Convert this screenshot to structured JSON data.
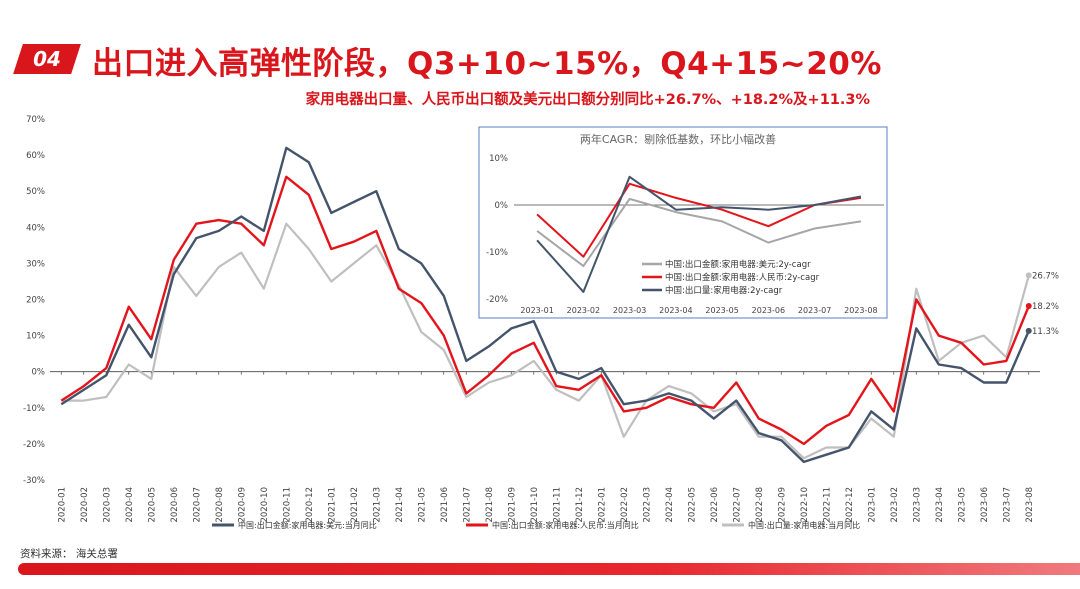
{
  "header": {
    "badge": "04",
    "title": "出口进入高弹性阶段，Q3+10~15%，Q4+15~20%",
    "subtitle": "家用电器出口量、人民币出口额及美元出口额分别同比+26.7%、+18.2%及+11.3%"
  },
  "source": "资料来源：  海关总署",
  "colors": {
    "brand_red": "#d9161c",
    "navy": "#44546a",
    "red": "#e3141b",
    "gray": "#bfbfbf"
  },
  "chart_data": [
    {
      "type": "line",
      "categories": [
        "2020-01",
        "2020-02",
        "2020-03",
        "2020-04",
        "2020-05",
        "2020-06",
        "2020-07",
        "2020-08",
        "2020-09",
        "2020-10",
        "2020-11",
        "2020-12",
        "2021-01",
        "2021-02",
        "2021-03",
        "2021-04",
        "2021-05",
        "2021-06",
        "2021-07",
        "2021-08",
        "2021-09",
        "2021-10",
        "2021-11",
        "2021-12",
        "2022-01",
        "2022-02",
        "2022-03",
        "2022-04",
        "2022-05",
        "2022-06",
        "2022-07",
        "2022-08",
        "2022-09",
        "2022-10",
        "2022-11",
        "2022-12",
        "2023-01",
        "2023-02",
        "2023-03",
        "2023-04",
        "2023-05",
        "2023-06",
        "2023-07",
        "2023-08"
      ],
      "ylim": [
        -30,
        70
      ],
      "yticks": [
        "-30%",
        "-20%",
        "-10%",
        "0%",
        "10%",
        "20%",
        "30%",
        "40%",
        "50%",
        "60%",
        "70%"
      ],
      "legend_position": "bottom",
      "series": [
        {
          "name": "中国:出口金额:家用电器:美元:当月同比",
          "color": "#44546a",
          "values": [
            -9,
            -5,
            -1,
            13,
            4,
            27,
            37,
            39,
            43,
            39,
            62,
            58,
            44,
            47,
            50,
            34,
            30,
            21,
            3,
            7,
            12,
            14,
            0,
            -2,
            1,
            -9,
            -8,
            -6,
            -8,
            -13,
            -8,
            -17,
            -19,
            -25,
            -23,
            -21,
            -11,
            -16,
            12,
            2,
            1,
            -3,
            -3,
            11.3
          ]
        },
        {
          "name": "中国:出口金额:家用电器:人民币:当月同比",
          "color": "#e3141b",
          "values": [
            -8,
            -4,
            1,
            18,
            9,
            31,
            41,
            42,
            41,
            35,
            54,
            49,
            34,
            36,
            39,
            23,
            19,
            10,
            -6,
            -1,
            5,
            8,
            -4,
            -5,
            -1,
            -11,
            -10,
            -7,
            -9,
            -10,
            -3,
            -13,
            -16,
            -20,
            -15,
            -12,
            -2,
            -11,
            20,
            10,
            8,
            2,
            3,
            18.2
          ]
        },
        {
          "name": "中国:出口量:家用电器:当月同比",
          "color": "#bfbfbf",
          "values": [
            -8,
            -8,
            -7,
            2,
            -2,
            29,
            21,
            29,
            33,
            23,
            41,
            34,
            25,
            30,
            35,
            24,
            11,
            6,
            -7,
            -3,
            -1,
            3,
            -5,
            -8,
            -1,
            -18,
            -8,
            -4,
            -6,
            -11,
            -9,
            -18,
            -18,
            -24,
            -21,
            -21,
            -13,
            -18,
            23,
            3,
            8,
            10,
            4,
            26.7
          ]
        }
      ],
      "end_labels": [
        "26.7%",
        "18.2%",
        "11.3%"
      ]
    },
    {
      "type": "line",
      "title": "两年CAGR：剔除低基数，环比小幅改善",
      "categories": [
        "2023-01",
        "2023-02",
        "2023-03",
        "2023-04",
        "2023-05",
        "2023-06",
        "2023-07",
        "2023-08"
      ],
      "ylim": [
        -20,
        10
      ],
      "yticks": [
        "10%",
        "0%",
        "-10%",
        "-20%"
      ],
      "legend_position": "bottom-left",
      "series": [
        {
          "name": "中国:出口金额:家用电器:美元:2y-cagr",
          "color": "#a6a6a6",
          "values": [
            -5.5,
            -13,
            1.3,
            -1.5,
            -3.5,
            -8,
            -5,
            -3.5
          ]
        },
        {
          "name": "中国:出口金额:家用电器:人民币:2y-cagr",
          "color": "#e3141b",
          "values": [
            -2,
            -11,
            4.5,
            1.5,
            -1,
            -4.5,
            0,
            1.5
          ]
        },
        {
          "name": "中国:出口量:家用电器:2y-cagr",
          "color": "#44546a",
          "values": [
            -7.5,
            -18.5,
            6,
            -1,
            -0.5,
            -1,
            0,
            1.8
          ]
        }
      ]
    }
  ]
}
